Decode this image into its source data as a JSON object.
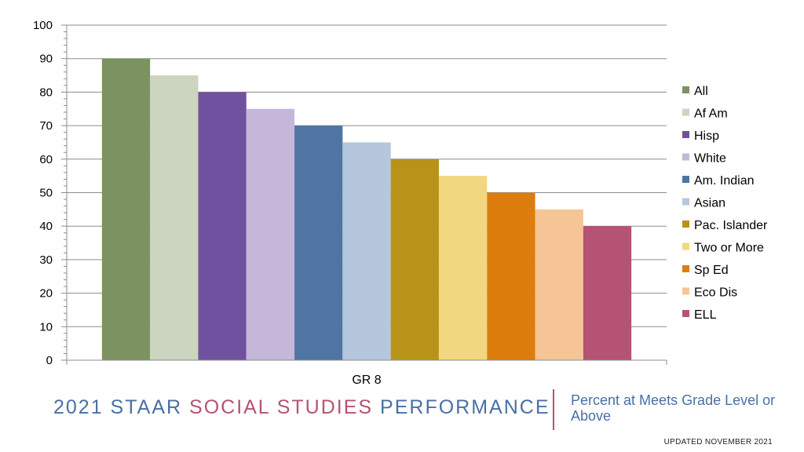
{
  "chart_data": {
    "type": "bar",
    "categories": [
      "GR 8"
    ],
    "series": [
      {
        "name": "All",
        "values": [
          90
        ],
        "color": "#7c9361"
      },
      {
        "name": "Af Am",
        "values": [
          85
        ],
        "color": "#cbd5bf"
      },
      {
        "name": "Hisp",
        "values": [
          80
        ],
        "color": "#7051a0"
      },
      {
        "name": "White",
        "values": [
          75
        ],
        "color": "#c4b7d9"
      },
      {
        "name": "Am. Indian",
        "values": [
          70
        ],
        "color": "#4e75a3"
      },
      {
        "name": "Asian",
        "values": [
          65
        ],
        "color": "#b5c7dd"
      },
      {
        "name": "Pac. Islander",
        "values": [
          60
        ],
        "color": "#b79318"
      },
      {
        "name": "Two or More",
        "values": [
          55
        ],
        "color": "#f1d77f"
      },
      {
        "name": "Sp Ed",
        "values": [
          50
        ],
        "color": "#dd7d0e"
      },
      {
        "name": "Eco Dis",
        "values": [
          45
        ],
        "color": "#f6c595"
      },
      {
        "name": "ELL",
        "values": [
          40
        ],
        "color": "#b45374"
      }
    ],
    "ylim": [
      0,
      100
    ],
    "yticks": [
      0,
      10,
      20,
      30,
      40,
      50,
      60,
      70,
      80,
      90,
      100
    ],
    "grid": true,
    "legend": "right"
  },
  "footer": {
    "title_parts": [
      {
        "text": "2021 STAAR ",
        "color": "#4a6fa5"
      },
      {
        "text": "SOCIAL STUDIES",
        "color": "#b5546e"
      },
      {
        "text": " PERFORMANCE",
        "color": "#4a6fa5"
      }
    ],
    "subtitle": "Percent at Meets Grade Level or Above",
    "updated": "UPDATED NOVEMBER 2021"
  }
}
